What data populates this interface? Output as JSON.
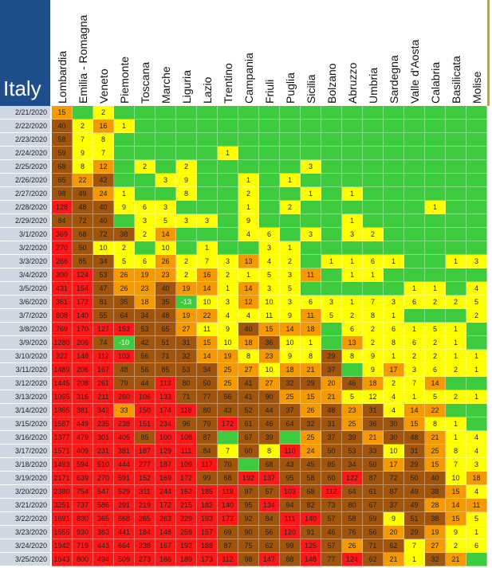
{
  "table": {
    "title": "Italy",
    "columns": [
      "Lombardia",
      "Emilia - Romagna",
      "Veneto",
      "Piemonte",
      "Toscana",
      "Marche",
      "Liguria",
      "Lazio",
      "Trentino",
      "Campania",
      "Friuli",
      "Puglia",
      "Sicilia",
      "Bolzano",
      "Abruzzo",
      "Umbria",
      "Sardegna",
      "Valle d'Aosta",
      "Calabria",
      "Basilicata",
      "Molise"
    ],
    "palette": {
      "G": "#3ecc3e",
      "g": "#3ecc3e",
      "Y": "#ffff00",
      "O": "#f59a00",
      "B": "#a0540c",
      "R": "#ff1717"
    },
    "rows": [
      {
        "date": "2/21/2020",
        "values": [
          15,
          null,
          2,
          null,
          null,
          null,
          null,
          null,
          null,
          null,
          null,
          null,
          null,
          null,
          null,
          null,
          null,
          null,
          null,
          null,
          null
        ],
        "colors": "OGYGGGGGGGGGGGGGGGGGG"
      },
      {
        "date": "2/22/2020",
        "values": [
          40,
          2,
          16,
          1,
          null,
          null,
          null,
          null,
          null,
          null,
          null,
          null,
          null,
          null,
          null,
          null,
          null,
          null,
          null,
          null,
          null
        ],
        "colors": "BYOYGGGGGGGGGGGGGGGGG"
      },
      {
        "date": "2/23/2020",
        "values": [
          58,
          7,
          8,
          null,
          null,
          null,
          null,
          null,
          null,
          null,
          null,
          null,
          null,
          null,
          null,
          null,
          null,
          null,
          null,
          null,
          null
        ],
        "colors": "BYYGGGGGGGGGGGGGGGGGG"
      },
      {
        "date": "2/24/2020",
        "values": [
          59,
          9,
          7,
          null,
          null,
          null,
          null,
          null,
          1,
          null,
          null,
          null,
          null,
          null,
          null,
          null,
          null,
          null,
          null,
          null,
          null
        ],
        "colors": "BYYGGGGGYGGGGGGGGGGGG"
      },
      {
        "date": "2/25/2020",
        "values": [
          68,
          8,
          12,
          null,
          2,
          null,
          2,
          null,
          null,
          null,
          null,
          null,
          3,
          null,
          null,
          null,
          null,
          null,
          null,
          null,
          null
        ],
        "colors": "BYOGYGYGGGGGYGGGGGGGG"
      },
      {
        "date": "2/26/2020",
        "values": [
          65,
          22,
          42,
          null,
          null,
          3,
          9,
          null,
          null,
          1,
          null,
          1,
          null,
          null,
          null,
          null,
          null,
          null,
          null,
          null,
          null
        ],
        "colors": "BOBGGYYGGYGYGGGGGGGGG"
      },
      {
        "date": "2/27/2020",
        "values": [
          98,
          49,
          24,
          1,
          null,
          null,
          8,
          null,
          null,
          2,
          null,
          null,
          1,
          null,
          1,
          null,
          null,
          null,
          null,
          null,
          null
        ],
        "colors": "BBOYGGYGGYGGYGYGGGGGG"
      },
      {
        "date": "2/28/2020",
        "values": [
          128,
          48,
          40,
          9,
          6,
          3,
          null,
          null,
          null,
          1,
          null,
          2,
          null,
          null,
          null,
          null,
          null,
          null,
          1,
          null,
          null
        ],
        "colors": "RBBYYYGGGYGYGGGGGGYGG"
      },
      {
        "date": "2/29/2020",
        "values": [
          84,
          72,
          40,
          null,
          3,
          5,
          3,
          3,
          null,
          9,
          null,
          null,
          null,
          null,
          1,
          null,
          null,
          null,
          null,
          null,
          null
        ],
        "colors": "BBBGYYYYGYGGGGYGGGGGG"
      },
      {
        "date": "3/1/2020",
        "values": [
          369,
          68,
          72,
          38,
          2,
          14,
          null,
          null,
          null,
          4,
          6,
          null,
          3,
          null,
          3,
          2,
          null,
          null,
          null,
          null,
          null
        ],
        "colors": "RBBBYOGGGYYGYGYYGGGGG"
      },
      {
        "date": "3/2/2020",
        "values": [
          270,
          50,
          10,
          2,
          null,
          10,
          null,
          1,
          null,
          null,
          3,
          1,
          null,
          null,
          null,
          null,
          null,
          null,
          null,
          null,
          null
        ],
        "colors": "RBYYGYGYGGYYGGGGGGGGG"
      },
      {
        "date": "3/3/2020",
        "values": [
          266,
          85,
          34,
          5,
          6,
          26,
          2,
          7,
          3,
          13,
          4,
          2,
          null,
          1,
          1,
          6,
          1,
          null,
          null,
          1,
          3
        ],
        "colors": "RBBYYOYYYOYYGYYYYGGYY"
      },
      {
        "date": "3/4/2020",
        "values": [
          300,
          124,
          53,
          26,
          19,
          23,
          2,
          16,
          2,
          1,
          5,
          3,
          11,
          null,
          1,
          1,
          null,
          null,
          null,
          null,
          null
        ],
        "colors": "RRBOOOYOYYYYOGYYGGGGG"
      },
      {
        "date": "3/5/2020",
        "values": [
          431,
          154,
          47,
          26,
          23,
          40,
          19,
          14,
          1,
          14,
          3,
          5,
          null,
          null,
          null,
          null,
          null,
          1,
          1,
          null,
          4
        ],
        "colors": "RRBOOBOOYOYYGGGGGYYGY"
      },
      {
        "date": "3/6/2020",
        "values": [
          361,
          172,
          81,
          35,
          18,
          35,
          -13,
          10,
          3,
          12,
          10,
          3,
          6,
          3,
          1,
          7,
          3,
          6,
          2,
          2,
          5
        ],
        "colors": "RRBBOBgYYOYYYYYYYYYYY"
      },
      {
        "date": "3/7/2020",
        "values": [
          808,
          140,
          55,
          64,
          34,
          48,
          19,
          22,
          4,
          4,
          11,
          9,
          11,
          5,
          2,
          8,
          1,
          null,
          null,
          null,
          2
        ],
        "colors": "RRBBBBOOYYYYOYYYYGGGY"
      },
      {
        "date": "3/8/2020",
        "values": [
          769,
          170,
          127,
          153,
          53,
          65,
          27,
          11,
          9,
          40,
          15,
          14,
          18,
          null,
          6,
          2,
          6,
          1,
          5,
          1,
          null
        ],
        "colors": "RRRRBBOYYBOOOGYYYYYYG"
      },
      {
        "date": "3/9/2020",
        "values": [
          1280,
          206,
          74,
          -10,
          42,
          51,
          31,
          15,
          10,
          18,
          36,
          10,
          1,
          null,
          13,
          2,
          8,
          6,
          2,
          1,
          null
        ],
        "colors": "RRBgBBBOYOBYYGOYYYYYG"
      },
      {
        "date": "3/10/2020",
        "values": [
          322,
          148,
          112,
          103,
          56,
          71,
          32,
          14,
          19,
          8,
          23,
          9,
          8,
          29,
          8,
          9,
          1,
          2,
          2,
          1,
          1
        ],
        "colors": "RRRRBBBOOYOYYBYYYYYYY"
      },
      {
        "date": "3/11/2020",
        "values": [
          1489,
          206,
          167,
          48,
          56,
          85,
          53,
          34,
          25,
          27,
          10,
          18,
          21,
          37,
          null,
          9,
          17,
          3,
          6,
          2,
          1
        ],
        "colors": "RRRBBBBBOOYOOBGYOYYYY"
      },
      {
        "date": "3/12/2020",
        "values": [
          1445,
          208,
          261,
          79,
          44,
          113,
          80,
          50,
          25,
          41,
          27,
          32,
          29,
          20,
          46,
          18,
          2,
          7,
          14,
          null,
          null
        ],
        "colors": "RRRBBRBBOBOBBOBOYYOGG"
      },
      {
        "date": "3/13/2020",
        "values": [
          1095,
          316,
          211,
          260,
          106,
          133,
          71,
          77,
          56,
          41,
          90,
          25,
          15,
          21,
          5,
          12,
          4,
          1,
          5,
          2,
          1
        ],
        "colors": "RRRRRRBBBBBOOOYYYYYYY"
      },
      {
        "date": "3/14/2020",
        "values": [
          1865,
          381,
          342,
          33,
          150,
          174,
          118,
          80,
          43,
          52,
          44,
          37,
          26,
          48,
          23,
          31,
          4,
          14,
          22,
          null,
          null
        ],
        "colors": "RRRORRRBBBBBOBOBYOOGG"
      },
      {
        "date": "3/15/2020",
        "values": [
          1587,
          449,
          235,
          238,
          151,
          234,
          96,
          79,
          172,
          61,
          46,
          64,
          32,
          31,
          25,
          36,
          30,
          15,
          8,
          1,
          null
        ],
        "colors": "RRRRRRBBRBBBBBOBBOYYG"
      },
      {
        "date": "3/16/2020",
        "values": [
          1377,
          479,
          301,
          405,
          85,
          100,
          108,
          87,
          null,
          67,
          39,
          null,
          25,
          37,
          39,
          21,
          30,
          48,
          21,
          1,
          4
        ],
        "colors": "RRRRBRRBGBBGOBBOBBOYY"
      },
      {
        "date": "3/17/2020",
        "values": [
          1571,
          409,
          231,
          381,
          187,
          129,
          111,
          84,
          7,
          60,
          8,
          110,
          24,
          50,
          53,
          33,
          10,
          31,
          25,
          8,
          4
        ],
        "colors": "RRRRRRRBYBYROBBBYBOYY"
      },
      {
        "date": "3/18/2020",
        "values": [
          1493,
          594,
          510,
          444,
          277,
          187,
          109,
          117,
          70,
          null,
          68,
          43,
          45,
          85,
          34,
          50,
          17,
          29,
          15,
          7,
          3
        ],
        "colors": "RRRRRRRRBGBBBBBBOBOYY"
      },
      {
        "date": "3/19/2020",
        "values": [
          2171,
          639,
          270,
          591,
          152,
          169,
          172,
          99,
          68,
          192,
          137,
          95,
          58,
          60,
          122,
          87,
          72,
          50,
          40,
          10,
          18
        ],
        "colors": "RRRRRRRBBRRBBBRBBBBYO"
      },
      {
        "date": "3/20/2020",
        "values": [
          2380,
          754,
          547,
          529,
          311,
          244,
          162,
          185,
          119,
          97,
          57,
          103,
          68,
          112,
          64,
          61,
          87,
          49,
          38,
          15,
          4
        ],
        "colors": "RRRRRRRRRBBRBRBBBBBOY"
      },
      {
        "date": "3/21/2020",
        "values": [
          3251,
          737,
          586,
          291,
          219,
          172,
          215,
          182,
          140,
          95,
          134,
          94,
          82,
          73,
          80,
          67,
          37,
          49,
          28,
          14,
          11
        ],
        "colors": "RRRRRRRRRBRBBBBBBBOOO"
      },
      {
        "date": "3/22/2020",
        "values": [
          1691,
          830,
          365,
          668,
          265,
          263,
          229,
          193,
          172,
          92,
          84,
          111,
          140,
          57,
          58,
          59,
          9,
          51,
          38,
          15,
          5
        ],
        "colors": "RRRRRRRRRBBRRBBBYBBOY"
      },
      {
        "date": "3/23/2020",
        "values": [
          1555,
          930,
          383,
          441,
          184,
          148,
          259,
          157,
          69,
          90,
          56,
          120,
          91,
          46,
          76,
          56,
          20,
          29,
          19,
          9,
          1
        ],
        "colors": "RRRRRRRRBBBRBBBBOBOYY"
      },
      {
        "date": "3/24/2020",
        "values": [
          1942,
          719,
          443,
          664,
          238,
          167,
          192,
          188,
          87,
          75,
          62,
          99,
          125,
          57,
          26,
          71,
          62,
          7,
          27,
          2,
          6
        ],
        "colors": "RRRRRRRRBBBBRBOBBYOYY"
      },
      {
        "date": "3/25/2020",
        "values": [
          1643,
          800,
          494,
          509,
          273,
          186,
          189,
          173,
          112,
          98,
          147,
          88,
          148,
          77,
          124,
          62,
          21,
          1,
          32,
          21,
          null
        ],
        "colors": "RRRRRRRRRBRBRBRBOYBOG"
      }
    ]
  }
}
